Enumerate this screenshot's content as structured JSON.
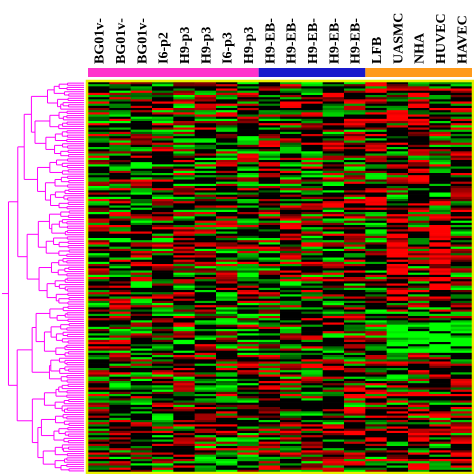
{
  "chart_data": {
    "type": "heatmap",
    "title": "",
    "xlabel": "",
    "ylabel": "",
    "columns": [
      "BG01v-",
      "BG01v-",
      "BG01v-",
      "I6-p2",
      "H9-p3",
      "H9-p3",
      "I6-p3",
      "H9-p3",
      "H9-EB-",
      "H9-EB-",
      "H9-EB-",
      "H9-EB-",
      "H9-EB-",
      "LFB",
      "UASMC",
      "NHA",
      "HUVEC",
      "HAVEC"
    ],
    "column_groups": [
      {
        "name": "",
        "color": "#ff33cc",
        "columns": [
          0,
          8
        ]
      },
      {
        "name": "",
        "color": "#1a1acc",
        "columns": [
          8,
          13
        ]
      },
      {
        "name": "",
        "color": "#ff9a1a",
        "columns": [
          13,
          18
        ]
      }
    ],
    "color_scale": {
      "low": "#00ff00",
      "mid": "#000000",
      "high": "#ff0000"
    },
    "row_count": 180,
    "row_dendrogram": true,
    "dendrogram_color": "#ff00ff",
    "border_color": "#e8f000",
    "values_note": ""
  }
}
